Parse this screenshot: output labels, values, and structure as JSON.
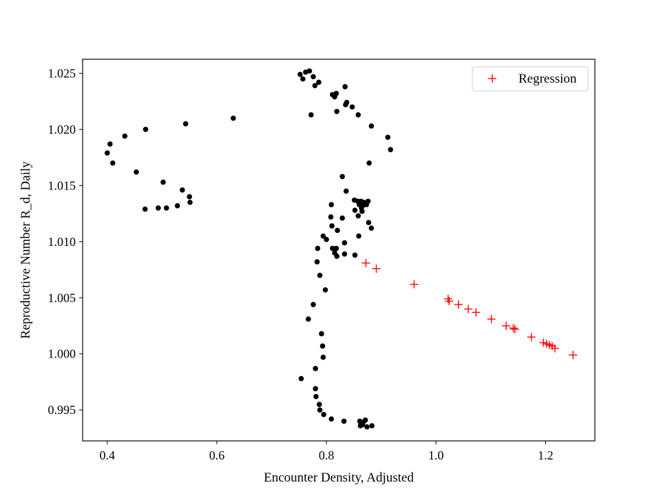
{
  "chart_data": {
    "type": "scatter",
    "title": "",
    "xlabel": "Encounter Density, Adjusted",
    "ylabel": "Reproductive Number R_d, Daily",
    "xlim": [
      0.355,
      1.29
    ],
    "ylim": [
      0.99225,
      1.02625
    ],
    "xticks": [
      0.4,
      0.6,
      0.8,
      1.0,
      1.2
    ],
    "xtick_labels": [
      "0.4",
      "0.6",
      "0.8",
      "1.0",
      "1.2"
    ],
    "yticks": [
      0.995,
      1.0,
      1.005,
      1.01,
      1.015,
      1.02,
      1.025
    ],
    "ytick_labels": [
      "0.995",
      "1.000",
      "1.005",
      "1.010",
      "1.015",
      "1.020",
      "1.025"
    ],
    "grid": false,
    "legend": {
      "placement": "top-right",
      "entries": [
        "Regression"
      ]
    },
    "series": [
      {
        "marker": "dot",
        "color": "#000000",
        "points": [
          [
            0.752,
            1.0249
          ],
          [
            0.757,
            1.0245
          ],
          [
            0.762,
            1.0251
          ],
          [
            0.769,
            1.0252
          ],
          [
            0.776,
            1.0247
          ],
          [
            0.779,
            1.0239
          ],
          [
            0.786,
            1.0242
          ],
          [
            0.834,
            1.0238
          ],
          [
            0.818,
            1.0232
          ],
          [
            0.811,
            1.0231
          ],
          [
            0.815,
            1.0229
          ],
          [
            0.837,
            1.0224
          ],
          [
            0.835,
            1.0222
          ],
          [
            0.847,
            1.022
          ],
          [
            0.819,
            1.0216
          ],
          [
            0.772,
            1.0213
          ],
          [
            0.858,
            1.0213
          ],
          [
            0.63,
            1.021
          ],
          [
            0.543,
            1.0205
          ],
          [
            0.882,
            1.0203
          ],
          [
            0.47,
            1.02
          ],
          [
            0.432,
            1.0194
          ],
          [
            0.912,
            1.0193
          ],
          [
            0.405,
            1.0187
          ],
          [
            0.917,
            1.0182
          ],
          [
            0.4,
            1.0179
          ],
          [
            0.41,
            1.017
          ],
          [
            0.878,
            1.017
          ],
          [
            0.453,
            1.0162
          ],
          [
            0.829,
            1.0158
          ],
          [
            0.502,
            1.0153
          ],
          [
            0.537,
            1.0146
          ],
          [
            0.836,
            1.0145
          ],
          [
            0.55,
            1.014
          ],
          [
            0.551,
            1.0135
          ],
          [
            0.528,
            1.0132
          ],
          [
            0.508,
            1.013
          ],
          [
            0.493,
            1.013
          ],
          [
            0.469,
            1.0129
          ],
          [
            0.851,
            1.0137
          ],
          [
            0.857,
            1.0136
          ],
          [
            0.863,
            1.0136
          ],
          [
            0.868,
            1.0135
          ],
          [
            0.876,
            1.0136
          ],
          [
            0.86,
            1.0133
          ],
          [
            0.866,
            1.0132
          ],
          [
            0.873,
            1.0133
          ],
          [
            0.809,
            1.0133
          ],
          [
            0.864,
            1.013
          ],
          [
            0.852,
            1.0128
          ],
          [
            0.865,
            1.0127
          ],
          [
            0.858,
            1.0123
          ],
          [
            0.808,
            1.0122
          ],
          [
            0.829,
            1.0121
          ],
          [
            0.877,
            1.0117
          ],
          [
            0.81,
            1.0114
          ],
          [
            0.882,
            1.0112
          ],
          [
            0.82,
            1.011
          ],
          [
            0.794,
            1.0105
          ],
          [
            0.859,
            1.0105
          ],
          [
            0.8,
            1.0102
          ],
          [
            0.833,
            1.0099
          ],
          [
            0.784,
            1.0094
          ],
          [
            0.811,
            1.0094
          ],
          [
            0.818,
            1.0094
          ],
          [
            0.815,
            1.009
          ],
          [
            0.819,
            1.0087
          ],
          [
            0.833,
            1.0089
          ],
          [
            0.852,
            1.0088
          ],
          [
            0.783,
            1.0082
          ],
          [
            0.788,
            1.007
          ],
          [
            0.798,
            1.0057
          ],
          [
            0.776,
            1.0044
          ],
          [
            0.767,
            1.0031
          ],
          [
            0.791,
            1.0018
          ],
          [
            0.793,
            1.0007
          ],
          [
            0.794,
            0.9997
          ],
          [
            0.78,
            0.9987
          ],
          [
            0.754,
            0.9978
          ],
          [
            0.78,
            0.9969
          ],
          [
            0.781,
            0.9962
          ],
          [
            0.787,
            0.9955
          ],
          [
            0.788,
            0.995
          ],
          [
            0.795,
            0.9946
          ],
          [
            0.809,
            0.9942
          ],
          [
            0.832,
            0.994
          ],
          [
            0.861,
            0.994
          ],
          [
            0.863,
            0.9938
          ],
          [
            0.867,
            0.9939
          ],
          [
            0.871,
            0.9941
          ],
          [
            0.862,
            0.9936
          ],
          [
            0.866,
            0.9937
          ],
          [
            0.874,
            0.9935
          ],
          [
            0.883,
            0.9936
          ]
        ]
      },
      {
        "name": "Regression",
        "marker": "plus",
        "color": "#ff0000",
        "points": [
          [
            0.872,
            1.0081
          ],
          [
            0.891,
            1.0076
          ],
          [
            0.96,
            1.0062
          ],
          [
            1.022,
            1.0049
          ],
          [
            1.024,
            1.0047
          ],
          [
            1.041,
            1.0044
          ],
          [
            1.059,
            1.004
          ],
          [
            1.073,
            1.0037
          ],
          [
            1.101,
            1.0031
          ],
          [
            1.128,
            1.0025
          ],
          [
            1.141,
            1.0023
          ],
          [
            1.144,
            1.0022
          ],
          [
            1.174,
            1.0015
          ],
          [
            1.196,
            1.001
          ],
          [
            1.202,
            1.0009
          ],
          [
            1.207,
            1.0008
          ],
          [
            1.212,
            1.0007
          ],
          [
            1.217,
            1.0005
          ],
          [
            1.25,
            0.9999
          ]
        ]
      }
    ]
  }
}
